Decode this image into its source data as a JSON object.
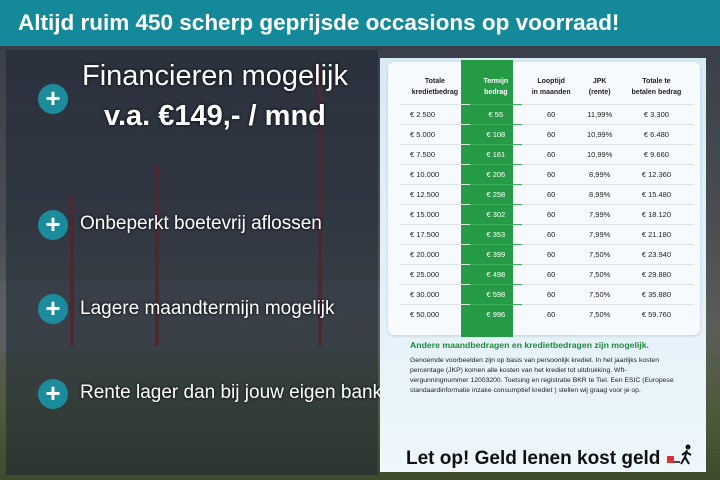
{
  "header": {
    "title": "Altijd ruim 450 scherp geprijsde occasions op voorraad!"
  },
  "left": {
    "headline": "Financieren mogelijk",
    "subline": "v.a. €149,- / mnd",
    "features": [
      "Onbeperkt boetevrij aflossen",
      "Lagere maandtermijn mogelijk",
      "Rente lager dan bij jouw eigen bank"
    ],
    "plus_icon": "+"
  },
  "table": {
    "headers": [
      [
        "Totale",
        "kredietbedrag"
      ],
      [
        "Termijn",
        "bedrag"
      ],
      [
        "Looptijd",
        "in maanden"
      ],
      [
        "JPK",
        "(rente)"
      ],
      [
        "Totale te",
        "betalen bedrag"
      ]
    ],
    "rows": [
      [
        "€ 2.500",
        "€ 55",
        "60",
        "11,99%",
        "€ 3.300"
      ],
      [
        "€ 5.000",
        "€ 108",
        "60",
        "10,99%",
        "€ 6.480"
      ],
      [
        "€ 7.500",
        "€ 161",
        "60",
        "10,99%",
        "€ 9.660"
      ],
      [
        "€ 10.000",
        "€ 206",
        "60",
        "8,99%",
        "€ 12.360"
      ],
      [
        "€ 12.500",
        "€ 258",
        "60",
        "8,99%",
        "€ 15.480"
      ],
      [
        "€ 15.000",
        "€ 302",
        "60",
        "7,99%",
        "€ 18.120"
      ],
      [
        "€ 17.500",
        "€ 353",
        "60",
        "7,99%",
        "€ 21.180"
      ],
      [
        "€ 20.000",
        "€ 399",
        "60",
        "7,50%",
        "€ 23.940"
      ],
      [
        "€ 25.000",
        "€ 498",
        "60",
        "7,50%",
        "€ 29.880"
      ],
      [
        "€ 30.000",
        "€ 598",
        "60",
        "7,50%",
        "€ 35.880"
      ],
      [
        "€ 50.000",
        "€ 996",
        "60",
        "7,50%",
        "€ 59.760"
      ]
    ]
  },
  "note": {
    "heading": "Andere maandbedragen en kredietbedragen zijn mogelijk.",
    "body": "Genoemde voorbeelden zijn op basis van persoonlijk krediet. In het jaarlijks kosten percentage (JKP) komen alle kosten van het krediet tot uitdrukking. Wft-vergunningnummer 12003200. Toetsing en registratie BKR te Tiel. Een ESIC (Europese standaardinformatie inzake consumptief krediet ) stellen wij graag voor je op.",
    "warning": "Let op! Geld lenen kost geld"
  },
  "colors": {
    "header": "#13899a",
    "accent_green": "#259b45",
    "plus": "#1a8c9c"
  }
}
